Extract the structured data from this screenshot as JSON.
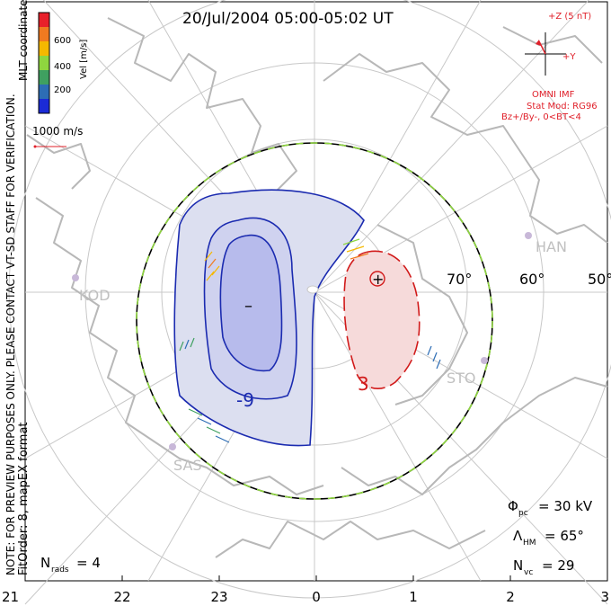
{
  "title": "20/Jul/2004 05:00-05:02 UT",
  "colorbar": {
    "label": "Vel [m/s]",
    "ticks": [
      "600",
      "400",
      "200"
    ],
    "colors": [
      "#e8202a",
      "#f07a20",
      "#f5b800",
      "#8fd63f",
      "#3fa060",
      "#2d6db5",
      "#1b2bd6"
    ]
  },
  "coords_label": "MLT coordinates",
  "scale_vector": "1000 m/s",
  "watermark": "NOTE: FOR PREVIEW PURPOSES ONLY. PLEASE CONTACT VT-SD STAFF FOR VERIFICATION.",
  "fit_info": "FitOrder: 8, mapEX format",
  "imf": {
    "z_label": "+Z (5 nT)",
    "y_label": "+Y",
    "source": "OMNI IMF",
    "stat_mod": "Stat Mod: RG96",
    "condition": "Bz+/By-, 0<BT<4"
  },
  "stations": [
    "KOD",
    "HAN",
    "SAS",
    "STO"
  ],
  "lat_labels": [
    "70°",
    "60°",
    "50°"
  ],
  "potential_labels": {
    "minus": "–",
    "plus": "+",
    "neg_contour": "-9",
    "pos_contour": "3"
  },
  "stats": {
    "phi_pc": {
      "symbol": "Φ",
      "sub": "pc",
      "value": "= 30 kV"
    },
    "lambda_hm": {
      "symbol": "Λ",
      "sub": "HM",
      "value": "= 65°"
    },
    "n_vc": {
      "symbol": "N",
      "sub": "vc",
      "value": "= 29"
    },
    "n_rads": {
      "symbol": "N",
      "sub": "rads",
      "value": "= 4"
    }
  },
  "mlt_ticks": [
    "21",
    "22",
    "23",
    "0",
    "1",
    "2",
    "3"
  ],
  "colors": {
    "negative_fill": "#dcdff0",
    "negative_core": "#b7bbec",
    "negative_line": "#1b2bb0",
    "positive_fill": "#f6dada",
    "positive_line": "#d11a1a",
    "boundary_dash": "#8fd63f",
    "coast": "#b8b8b8",
    "grid": "#c8c8c8",
    "imf_red": "#e0202a"
  }
}
